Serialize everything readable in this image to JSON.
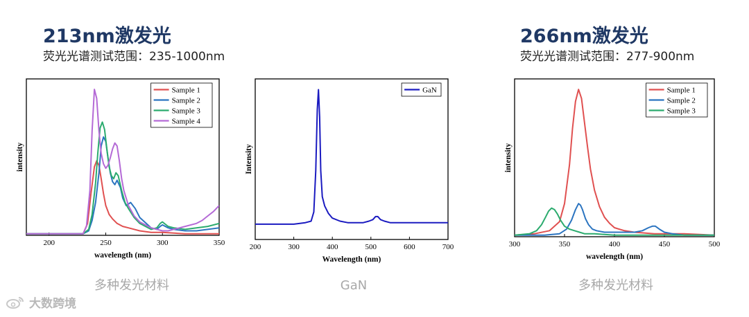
{
  "left": {
    "heading": "213nm激发光",
    "subheading": "荧光光谱测试范围：235-1000nm",
    "caption": "多种发光材料"
  },
  "middle": {
    "caption": "GaN"
  },
  "right": {
    "heading": "266nm激发光",
    "subheading": "荧光光谱测试范围：277-900nm",
    "caption": "多种发光材料"
  },
  "watermark": {
    "text": "大数跨境",
    "icon": "weibo-logo-icon"
  },
  "colors": {
    "heading": "#1f3864",
    "caption": "#a8a8a8",
    "sample1": "#e05050",
    "sample2": "#2b74c0",
    "sample3": "#2bab6e",
    "sample4": "#b46ad6",
    "gan": "#1a1ac0"
  },
  "chart_data": [
    {
      "type": "line",
      "xlabel": "wavelength (nm)",
      "ylabel": "intensity",
      "xlim": [
        180,
        350
      ],
      "xticks": [
        200,
        250,
        300,
        350
      ],
      "ylim": [
        0,
        1.05
      ],
      "legend": "top-right",
      "series": [
        {
          "name": "Sample 1",
          "color": "#e05050",
          "x": [
            180,
            230,
            234,
            237,
            240,
            242,
            244,
            246,
            248,
            250,
            253,
            256,
            260,
            265,
            270,
            280,
            290,
            300,
            320,
            350
          ],
          "y": [
            0.01,
            0.01,
            0.08,
            0.28,
            0.46,
            0.5,
            0.47,
            0.38,
            0.28,
            0.2,
            0.14,
            0.11,
            0.08,
            0.06,
            0.05,
            0.03,
            0.02,
            0.02,
            0.01,
            0.01
          ]
        },
        {
          "name": "Sample 2",
          "color": "#2b74c0",
          "x": [
            180,
            230,
            235,
            238,
            241,
            244,
            246,
            248,
            250,
            252,
            254,
            256,
            258,
            260,
            263,
            265,
            268,
            272,
            276,
            280,
            290,
            295,
            298,
            300,
            305,
            310,
            320,
            330,
            340,
            350
          ],
          "y": [
            0.01,
            0.01,
            0.03,
            0.1,
            0.22,
            0.42,
            0.6,
            0.66,
            0.63,
            0.52,
            0.42,
            0.36,
            0.34,
            0.37,
            0.32,
            0.25,
            0.2,
            0.22,
            0.18,
            0.12,
            0.05,
            0.04,
            0.06,
            0.07,
            0.05,
            0.04,
            0.03,
            0.03,
            0.04,
            0.05
          ]
        },
        {
          "name": "Sample 3",
          "color": "#2bab6e",
          "x": [
            180,
            230,
            235,
            238,
            241,
            243,
            245,
            247,
            249,
            251,
            253,
            255,
            257,
            259,
            261,
            264,
            267,
            270,
            275,
            280,
            290,
            295,
            298,
            300,
            305,
            310,
            320,
            330,
            340,
            350
          ],
          "y": [
            0.01,
            0.01,
            0.04,
            0.14,
            0.35,
            0.55,
            0.72,
            0.76,
            0.71,
            0.58,
            0.46,
            0.4,
            0.38,
            0.42,
            0.4,
            0.3,
            0.22,
            0.18,
            0.12,
            0.08,
            0.04,
            0.05,
            0.08,
            0.09,
            0.06,
            0.05,
            0.04,
            0.05,
            0.06,
            0.08
          ]
        },
        {
          "name": "Sample 4",
          "color": "#b46ad6",
          "x": [
            180,
            230,
            233,
            236,
            238,
            240,
            242,
            244,
            246,
            248,
            250,
            252,
            254,
            256,
            258,
            260,
            262,
            264,
            266,
            268,
            270,
            275,
            280,
            290,
            295,
            300,
            305,
            310,
            320,
            330,
            335,
            340,
            345,
            350
          ],
          "y": [
            0.01,
            0.01,
            0.06,
            0.3,
            0.7,
            0.98,
            0.92,
            0.7,
            0.55,
            0.48,
            0.45,
            0.47,
            0.52,
            0.58,
            0.62,
            0.6,
            0.5,
            0.38,
            0.3,
            0.25,
            0.2,
            0.13,
            0.09,
            0.05,
            0.04,
            0.03,
            0.03,
            0.04,
            0.06,
            0.08,
            0.1,
            0.13,
            0.16,
            0.2
          ]
        }
      ]
    },
    {
      "type": "line",
      "xlabel": "Wavelength (nm)",
      "ylabel": "Intensity",
      "xlim": [
        200,
        700
      ],
      "xticks": [
        200,
        300,
        400,
        500,
        600,
        700
      ],
      "ylim": [
        0,
        1.05
      ],
      "legend": "top-right",
      "series": [
        {
          "name": "GaN",
          "color": "#1a1ac0",
          "x": [
            200,
            250,
            300,
            330,
            345,
            352,
            357,
            361,
            364,
            367,
            370,
            374,
            380,
            390,
            400,
            420,
            440,
            460,
            480,
            495,
            505,
            512,
            518,
            525,
            535,
            550,
            570,
            600,
            650,
            700
          ],
          "y": [
            0.1,
            0.1,
            0.1,
            0.11,
            0.12,
            0.18,
            0.45,
            0.85,
            0.98,
            0.8,
            0.45,
            0.28,
            0.22,
            0.17,
            0.14,
            0.12,
            0.11,
            0.11,
            0.11,
            0.12,
            0.13,
            0.15,
            0.15,
            0.13,
            0.12,
            0.11,
            0.11,
            0.11,
            0.11,
            0.11
          ]
        }
      ]
    },
    {
      "type": "line",
      "xlabel": "wavelength (nm)",
      "ylabel": "intensity",
      "xlim": [
        300,
        500
      ],
      "xticks": [
        300,
        350,
        400,
        450,
        500
      ],
      "ylim": [
        0,
        1.05
      ],
      "legend": "top-right",
      "series": [
        {
          "name": "Sample 1",
          "color": "#e05050",
          "x": [
            300,
            320,
            335,
            345,
            350,
            355,
            358,
            361,
            364,
            367,
            370,
            373,
            376,
            380,
            385,
            390,
            395,
            400,
            410,
            420,
            440,
            470,
            500
          ],
          "y": [
            0.01,
            0.02,
            0.04,
            0.1,
            0.22,
            0.48,
            0.72,
            0.9,
            0.98,
            0.92,
            0.76,
            0.6,
            0.45,
            0.31,
            0.2,
            0.13,
            0.09,
            0.06,
            0.04,
            0.03,
            0.02,
            0.02,
            0.01
          ]
        },
        {
          "name": "Sample 2",
          "color": "#2b74c0",
          "x": [
            300,
            330,
            345,
            352,
            357,
            361,
            364,
            366,
            368,
            371,
            374,
            378,
            382,
            390,
            400,
            410,
            420,
            428,
            434,
            438,
            441,
            445,
            450,
            458,
            470,
            500
          ],
          "y": [
            0.01,
            0.01,
            0.02,
            0.05,
            0.11,
            0.18,
            0.22,
            0.21,
            0.18,
            0.12,
            0.08,
            0.05,
            0.04,
            0.03,
            0.03,
            0.03,
            0.03,
            0.04,
            0.06,
            0.07,
            0.07,
            0.05,
            0.03,
            0.02,
            0.01,
            0.01
          ]
        },
        {
          "name": "Sample 3",
          "color": "#2bab6e",
          "x": [
            300,
            315,
            322,
            327,
            331,
            334,
            337,
            340,
            343,
            346,
            350,
            355,
            360,
            365,
            370,
            380,
            400,
            430,
            470,
            500
          ],
          "y": [
            0.01,
            0.02,
            0.04,
            0.08,
            0.13,
            0.17,
            0.19,
            0.18,
            0.15,
            0.11,
            0.07,
            0.05,
            0.04,
            0.03,
            0.02,
            0.02,
            0.01,
            0.01,
            0.01,
            0.01
          ]
        }
      ]
    }
  ]
}
